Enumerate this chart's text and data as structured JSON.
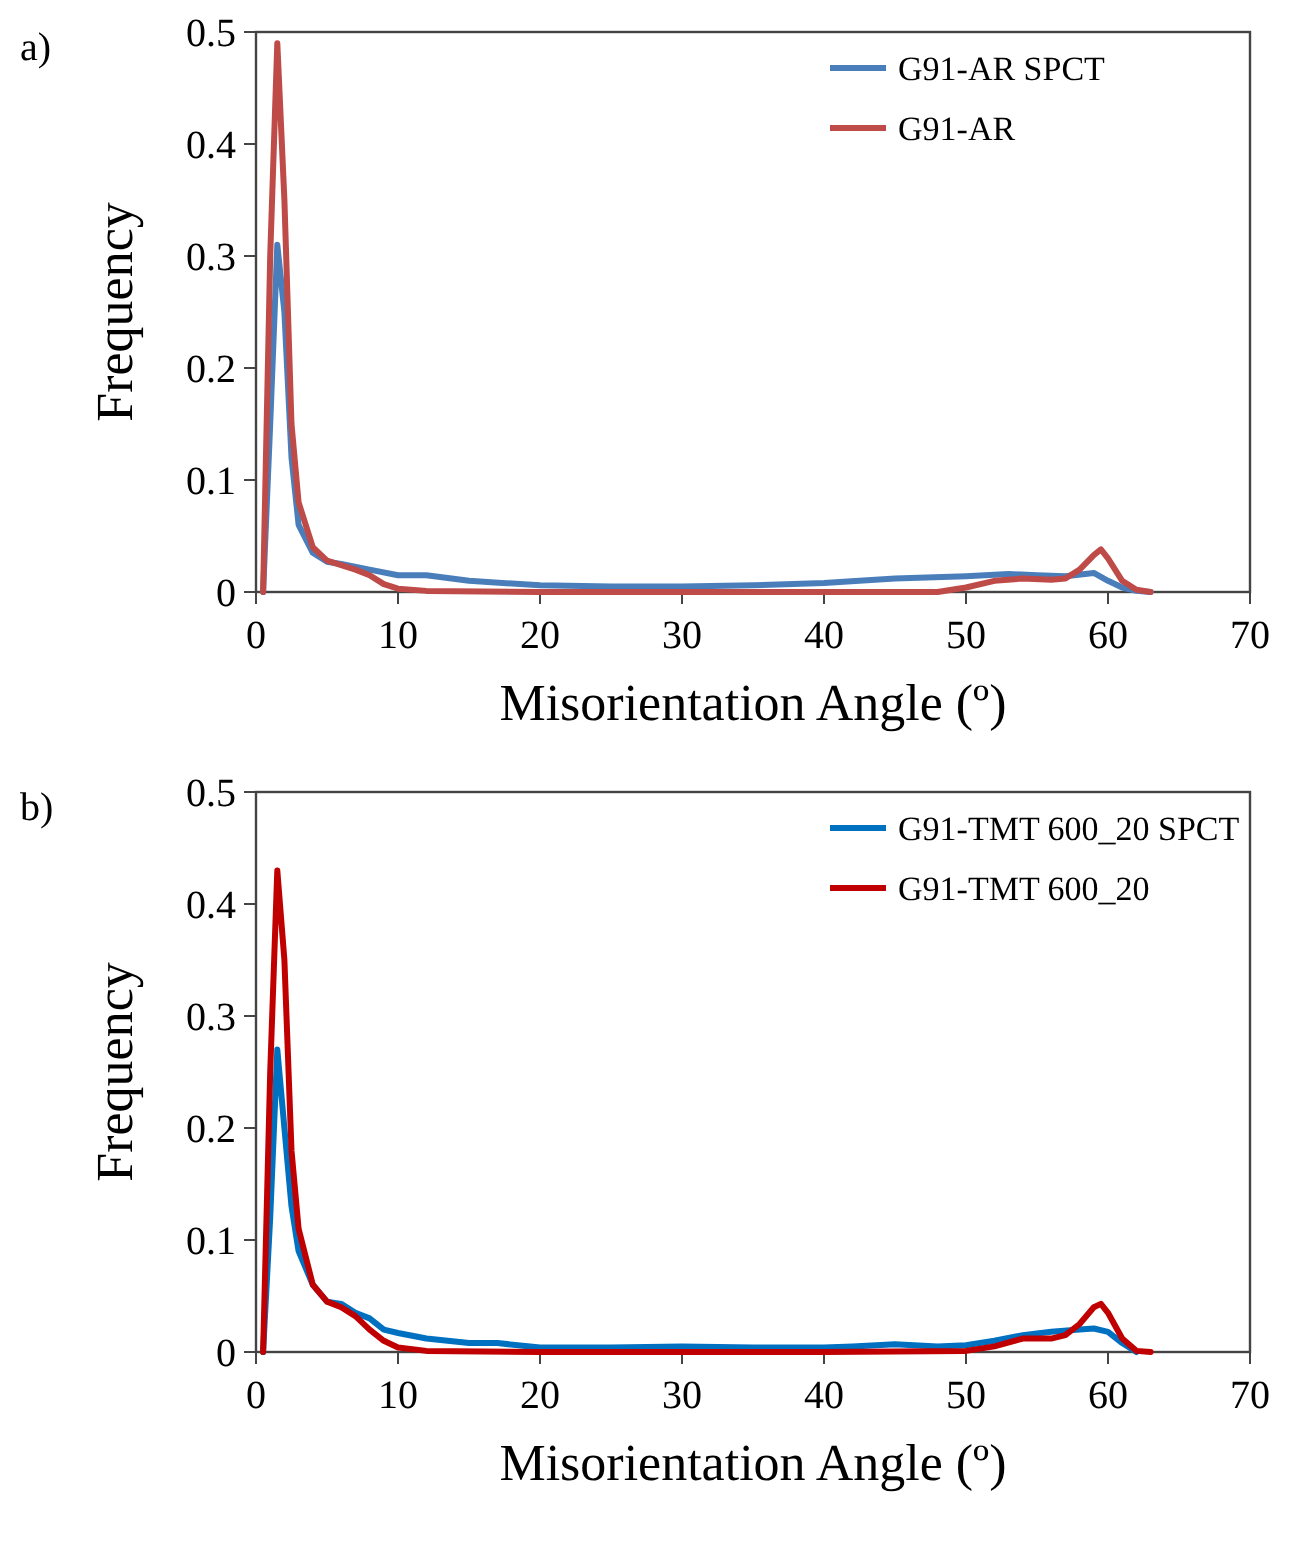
{
  "chart_data": [
    {
      "type": "line",
      "annotations": [
        "a)"
      ],
      "xlabel": "Misorientation Angle (º)",
      "ylabel": "Frequency",
      "xlim": [
        0,
        70
      ],
      "ylim": [
        0,
        0.5
      ],
      "xticks": [
        0,
        10,
        20,
        30,
        40,
        50,
        60,
        70
      ],
      "yticks": [
        0,
        0.1,
        0.2,
        0.3,
        0.4,
        0.5
      ],
      "grid": false,
      "legend": "top right",
      "marker": "none",
      "line_style": "solid",
      "series": [
        {
          "name": "G91-AR SPCT",
          "color": "#4a7ebb",
          "x": [
            0.5,
            1,
            1.5,
            2,
            2.5,
            3,
            4,
            5,
            6,
            8,
            10,
            12,
            15,
            20,
            25,
            30,
            35,
            40,
            45,
            50,
            53,
            55,
            57,
            59,
            60,
            61,
            62,
            63
          ],
          "values": [
            0,
            0.15,
            0.31,
            0.25,
            0.12,
            0.06,
            0.035,
            0.027,
            0.025,
            0.02,
            0.015,
            0.015,
            0.01,
            0.006,
            0.005,
            0.005,
            0.006,
            0.008,
            0.012,
            0.014,
            0.016,
            0.015,
            0.014,
            0.017,
            0.01,
            0.004,
            0.001,
            0
          ]
        },
        {
          "name": "G91-AR",
          "color": "#be4b48",
          "x": [
            0.5,
            1,
            1.5,
            2,
            2.5,
            3,
            4,
            5,
            6,
            7,
            8,
            9,
            10,
            12,
            20,
            30,
            40,
            48,
            50,
            52,
            54,
            56,
            57,
            58,
            59,
            59.5,
            60,
            61,
            62,
            63
          ],
          "values": [
            0,
            0.3,
            0.49,
            0.35,
            0.15,
            0.08,
            0.04,
            0.028,
            0.024,
            0.02,
            0.015,
            0.007,
            0.003,
            0.001,
            0,
            0,
            0,
            0,
            0.004,
            0.01,
            0.012,
            0.011,
            0.012,
            0.02,
            0.033,
            0.038,
            0.03,
            0.01,
            0.002,
            0
          ]
        }
      ]
    },
    {
      "type": "line",
      "annotations": [
        "b)"
      ],
      "xlabel": "Misorientation Angle (º)",
      "ylabel": "Frequency",
      "xlim": [
        0,
        70
      ],
      "ylim": [
        0,
        0.5
      ],
      "xticks": [
        0,
        10,
        20,
        30,
        40,
        50,
        60,
        70
      ],
      "yticks": [
        0,
        0.1,
        0.2,
        0.3,
        0.4,
        0.5
      ],
      "grid": false,
      "legend": "top right",
      "marker": "none",
      "line_style": "solid",
      "series": [
        {
          "name": "G91-TMT 600_20 SPCT",
          "color": "#0070c0",
          "x": [
            0.5,
            1,
            1.5,
            2,
            2.5,
            3,
            4,
            5,
            6,
            7,
            8,
            9,
            10,
            12,
            15,
            17,
            20,
            25,
            30,
            35,
            40,
            42,
            45,
            48,
            50,
            52,
            54,
            56,
            58,
            59,
            60,
            61,
            62
          ],
          "values": [
            0,
            0.12,
            0.27,
            0.2,
            0.13,
            0.09,
            0.06,
            0.045,
            0.043,
            0.035,
            0.03,
            0.02,
            0.017,
            0.012,
            0.008,
            0.008,
            0.004,
            0.004,
            0.005,
            0.004,
            0.004,
            0.005,
            0.007,
            0.005,
            0.006,
            0.01,
            0.015,
            0.018,
            0.02,
            0.021,
            0.018,
            0.008,
            0
          ]
        },
        {
          "name": "G91-TMT 600_20",
          "color": "#c00000",
          "x": [
            0.5,
            1,
            1.5,
            2,
            2.5,
            3,
            4,
            5,
            6,
            7,
            8,
            9,
            10,
            12,
            20,
            30,
            40,
            50,
            52,
            54,
            56,
            57,
            58,
            59,
            59.5,
            60,
            61,
            62,
            63
          ],
          "values": [
            0,
            0.25,
            0.43,
            0.35,
            0.18,
            0.11,
            0.06,
            0.045,
            0.04,
            0.032,
            0.02,
            0.01,
            0.004,
            0.001,
            0,
            0,
            0,
            0.001,
            0.005,
            0.012,
            0.012,
            0.015,
            0.025,
            0.04,
            0.043,
            0.035,
            0.012,
            0.001,
            0
          ]
        }
      ]
    }
  ]
}
